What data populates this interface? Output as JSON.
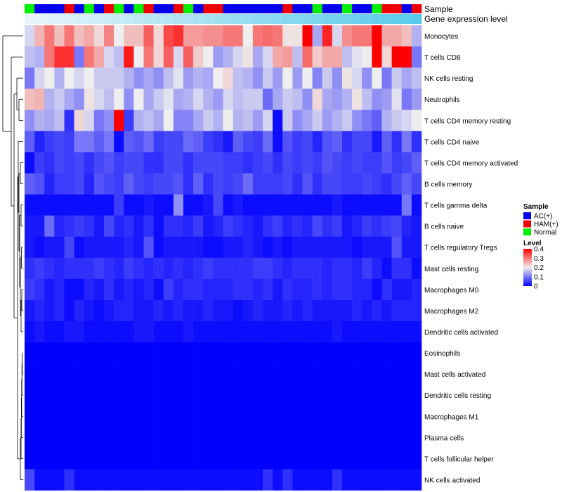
{
  "chart_data": {
    "type": "heatmap",
    "title": "",
    "annotation_tracks": {
      "sample_label": "Sample",
      "expression_label": "Gene expression level"
    },
    "columns": 40,
    "sample_groups": [
      "G",
      "B",
      "B",
      "B",
      "R",
      "B",
      "G",
      "B",
      "R",
      "G",
      "B",
      "G",
      "R",
      "B",
      "B",
      "R",
      "G",
      "B",
      "R",
      "R",
      "B",
      "B",
      "B",
      "B",
      "B",
      "B",
      "R",
      "B",
      "B",
      "G",
      "B",
      "B",
      "G",
      "B",
      "B",
      "G",
      "R",
      "R",
      "B",
      "R"
    ],
    "group_colors": {
      "B": "#0000ee",
      "R": "#ee0000",
      "G": "#00ee00"
    },
    "rows": [
      "Monocytes",
      "T cells CD8",
      "NK cells resting",
      "Neutrophils",
      "T cells CD4 memory resting",
      "T cells CD4 naive",
      "T cells CD4 memory activated",
      "B cells memory",
      "T cells gamma delta",
      "B cells naive",
      "T cells regulatory  Tregs",
      "Mast cells resting",
      "Macrophages M0",
      "Macrophages M2",
      "Dendritic cells activated",
      "Eosinophils",
      "Mast cells activated",
      "Dendritic cells resting",
      "Macrophages M1",
      "Plasma cells",
      "T cells follicular helper",
      "NK cells activated"
    ],
    "values": [
      [
        0.18,
        0.25,
        0.3,
        0.24,
        0.3,
        0.24,
        0.26,
        0.22,
        0.29,
        0.2,
        0.24,
        0.24,
        0.32,
        0.22,
        0.34,
        0.36,
        0.27,
        0.27,
        0.28,
        0.28,
        0.3,
        0.3,
        0.2,
        0.3,
        0.31,
        0.3,
        0.21,
        0.21,
        0.4,
        0.14,
        0.37,
        0.18,
        0.28,
        0.3,
        0.3,
        0.4,
        0.26,
        0.26,
        0.24,
        0.15
      ],
      [
        0.16,
        0.15,
        0.3,
        0.36,
        0.36,
        0.1,
        0.3,
        0.26,
        0.18,
        0.16,
        0.38,
        0.2,
        0.3,
        0.22,
        0.32,
        0.18,
        0.32,
        0.23,
        0.2,
        0.13,
        0.15,
        0.18,
        0.21,
        0.14,
        0.18,
        0.26,
        0.27,
        0.16,
        0.31,
        0.23,
        0.26,
        0.26,
        0.16,
        0.19,
        0.2,
        0.4,
        0.22,
        0.4,
        0.4,
        0.1
      ],
      [
        0.1,
        0.18,
        0.2,
        0.15,
        0.2,
        0.18,
        0.2,
        0.17,
        0.17,
        0.17,
        0.15,
        0.12,
        0.14,
        0.12,
        0.16,
        0.19,
        0.13,
        0.15,
        0.14,
        0.2,
        0.22,
        0.16,
        0.15,
        0.12,
        0.17,
        0.13,
        0.2,
        0.13,
        0.2,
        0.11,
        0.17,
        0.12,
        0.21,
        0.18,
        0.12,
        0.2,
        0.1,
        0.17,
        0.14,
        0.16
      ],
      [
        0.24,
        0.25,
        0.15,
        0.17,
        0.14,
        0.12,
        0.21,
        0.18,
        0.16,
        0.2,
        0.12,
        0.2,
        0.14,
        0.17,
        0.19,
        0.14,
        0.15,
        0.18,
        0.15,
        0.13,
        0.18,
        0.16,
        0.17,
        0.17,
        0.09,
        0.14,
        0.17,
        0.16,
        0.12,
        0.22,
        0.14,
        0.13,
        0.15,
        0.21,
        0.16,
        0.12,
        0.13,
        0.19,
        0.1,
        0.13
      ],
      [
        0.12,
        0.15,
        0.14,
        0.16,
        0.04,
        0.22,
        0.18,
        0.1,
        0.12,
        0.4,
        0.05,
        0.15,
        0.16,
        0.14,
        0.2,
        0.11,
        0.11,
        0.14,
        0.17,
        0.15,
        0.2,
        0.15,
        0.16,
        0.13,
        0.18,
        0.01,
        0.17,
        0.12,
        0.14,
        0.17,
        0.13,
        0.15,
        0.17,
        0.12,
        0.1,
        0.08,
        0.15,
        0.17,
        0.18,
        0.2
      ],
      [
        0.08,
        0.03,
        0.05,
        0.06,
        0.05,
        0.1,
        0.1,
        0.08,
        0.1,
        0.01,
        0.08,
        0.07,
        0.09,
        0.05,
        0.06,
        0.06,
        0.09,
        0.08,
        0.05,
        0.04,
        0.02,
        0.08,
        0.06,
        0.05,
        0.09,
        0.01,
        0.07,
        0.05,
        0.06,
        0.03,
        0.07,
        0.08,
        0.04,
        0.06,
        0.06,
        0.02,
        0.08,
        0.04,
        0.1,
        0.04
      ],
      [
        0.01,
        0.05,
        0.04,
        0.06,
        0.05,
        0.06,
        0.04,
        0.06,
        0.07,
        0.05,
        0.06,
        0.06,
        0.04,
        0.04,
        0.06,
        0.06,
        0.04,
        0.06,
        0.06,
        0.06,
        0.05,
        0.05,
        0.04,
        0.05,
        0.06,
        0.04,
        0.06,
        0.05,
        0.06,
        0.05,
        0.07,
        0.06,
        0.05,
        0.06,
        0.05,
        0.05,
        0.07,
        0.05,
        0.06,
        0.08
      ],
      [
        0.08,
        0.07,
        0.03,
        0.05,
        0.05,
        0.06,
        0.03,
        0.07,
        0.06,
        0.05,
        0.08,
        0.06,
        0.05,
        0.06,
        0.06,
        0.07,
        0.04,
        0.08,
        0.04,
        0.06,
        0.05,
        0.06,
        0.09,
        0.05,
        0.05,
        0.05,
        0.06,
        0.04,
        0.07,
        0.04,
        0.06,
        0.06,
        0.05,
        0.05,
        0.06,
        0.05,
        0.04,
        0.06,
        0.08,
        0.06
      ],
      [
        0.01,
        0.01,
        0.01,
        0.01,
        0.01,
        0.01,
        0.01,
        0.01,
        0.01,
        0.05,
        0.01,
        0.01,
        0.02,
        0.01,
        0.01,
        0.12,
        0.01,
        0.01,
        0.02,
        0.06,
        0.01,
        0.02,
        0.01,
        0.01,
        0.01,
        0.01,
        0.01,
        0.01,
        0.01,
        0.01,
        0.01,
        0.02,
        0.01,
        0.01,
        0.01,
        0.01,
        0.01,
        0.01,
        0.1,
        0.01
      ],
      [
        0.02,
        0.02,
        0.09,
        0.03,
        0.04,
        0.05,
        0.04,
        0.02,
        0.06,
        0.03,
        0.04,
        0.02,
        0.04,
        0.01,
        0.04,
        0.04,
        0.03,
        0.05,
        0.02,
        0.03,
        0.05,
        0.04,
        0.03,
        0.02,
        0.04,
        0.05,
        0.03,
        0.04,
        0.03,
        0.06,
        0.04,
        0.05,
        0.02,
        0.03,
        0.05,
        0.04,
        0.05,
        0.06,
        0.03,
        0.02
      ],
      [
        0.02,
        0.01,
        0.02,
        0.02,
        0.06,
        0.01,
        0.02,
        0.02,
        0.02,
        0.02,
        0.03,
        0.02,
        0.07,
        0.01,
        0.02,
        0.02,
        0.02,
        0.02,
        0.01,
        0.01,
        0.02,
        0.02,
        0.03,
        0.02,
        0.01,
        0.02,
        0.01,
        0.02,
        0.02,
        0.02,
        0.02,
        0.02,
        0.02,
        0.01,
        0.02,
        0.02,
        0.02,
        0.07,
        0.02,
        0.02
      ],
      [
        0.04,
        0.05,
        0.04,
        0.03,
        0.04,
        0.04,
        0.04,
        0.05,
        0.04,
        0.03,
        0.05,
        0.04,
        0.03,
        0.04,
        0.03,
        0.04,
        0.03,
        0.04,
        0.05,
        0.04,
        0.04,
        0.04,
        0.04,
        0.05,
        0.05,
        0.04,
        0.03,
        0.04,
        0.04,
        0.04,
        0.03,
        0.04,
        0.04,
        0.03,
        0.05,
        0.03,
        0.01,
        0.04,
        0.04,
        0.01
      ],
      [
        0.05,
        0.04,
        0.02,
        0.03,
        0.01,
        0.01,
        0.03,
        0.02,
        0.04,
        0.02,
        0.03,
        0.02,
        0.03,
        0.01,
        0.05,
        0.03,
        0.04,
        0.04,
        0.03,
        0.03,
        0.03,
        0.04,
        0.04,
        0.03,
        0.04,
        0.02,
        0.04,
        0.03,
        0.03,
        0.04,
        0.03,
        0.04,
        0.04,
        0.03,
        0.03,
        0.01,
        0.04,
        0.02,
        0.02,
        0.03
      ],
      [
        0.02,
        0.03,
        0.02,
        0.03,
        0.01,
        0.03,
        0.02,
        0.01,
        0.02,
        0.03,
        0.03,
        0.02,
        0.02,
        0.03,
        0.02,
        0.03,
        0.02,
        0.02,
        0.03,
        0.02,
        0.02,
        0.01,
        0.02,
        0.03,
        0.02,
        0.02,
        0.03,
        0.02,
        0.03,
        0.02,
        0.02,
        0.02,
        0.02,
        0.03,
        0.02,
        0.03,
        0.02,
        0.03,
        0.03,
        0.03
      ],
      [
        0.01,
        0.02,
        0.01,
        0.01,
        0.02,
        0.02,
        0.01,
        0.01,
        0.01,
        0.01,
        0.01,
        0.02,
        0.02,
        0.01,
        0.01,
        0.01,
        0.02,
        0.01,
        0.01,
        0.01,
        0.01,
        0.01,
        0.01,
        0.01,
        0.01,
        0.01,
        0.01,
        0.01,
        0.01,
        0.01,
        0.01,
        0.02,
        0.01,
        0.01,
        0.01,
        0.01,
        0.01,
        0.01,
        0.01,
        0.01
      ],
      [
        0,
        0,
        0,
        0,
        0,
        0,
        0,
        0,
        0,
        0,
        0,
        0,
        0,
        0,
        0,
        0,
        0,
        0,
        0,
        0,
        0,
        0,
        0,
        0,
        0,
        0,
        0,
        0,
        0,
        0,
        0,
        0,
        0,
        0,
        0,
        0,
        0,
        0,
        0,
        0
      ],
      [
        0,
        0,
        0,
        0,
        0,
        0,
        0,
        0,
        0,
        0,
        0,
        0,
        0,
        0,
        0,
        0,
        0,
        0,
        0,
        0,
        0,
        0,
        0,
        0,
        0,
        0,
        0,
        0,
        0,
        0,
        0,
        0,
        0,
        0,
        0,
        0,
        0,
        0,
        0,
        0
      ],
      [
        0,
        0,
        0,
        0,
        0,
        0,
        0,
        0,
        0,
        0,
        0,
        0,
        0,
        0,
        0,
        0,
        0,
        0,
        0,
        0,
        0,
        0,
        0,
        0,
        0,
        0,
        0,
        0,
        0,
        0,
        0,
        0,
        0,
        0,
        0,
        0,
        0,
        0,
        0,
        0
      ],
      [
        0,
        0,
        0,
        0,
        0,
        0,
        0,
        0,
        0,
        0,
        0,
        0,
        0,
        0,
        0,
        0,
        0,
        0,
        0,
        0,
        0,
        0,
        0,
        0,
        0,
        0,
        0,
        0,
        0,
        0,
        0,
        0,
        0,
        0,
        0,
        0,
        0,
        0,
        0,
        0
      ],
      [
        0,
        0,
        0,
        0,
        0,
        0,
        0,
        0,
        0,
        0,
        0,
        0,
        0,
        0,
        0,
        0,
        0,
        0,
        0,
        0,
        0,
        0,
        0,
        0,
        0,
        0,
        0,
        0,
        0,
        0,
        0,
        0,
        0,
        0,
        0,
        0,
        0,
        0,
        0,
        0
      ],
      [
        0,
        0,
        0,
        0,
        0,
        0,
        0,
        0,
        0,
        0,
        0,
        0,
        0,
        0,
        0,
        0,
        0,
        0,
        0,
        0,
        0,
        0,
        0,
        0,
        0,
        0,
        0,
        0,
        0,
        0,
        0,
        0,
        0,
        0,
        0,
        0,
        0,
        0,
        0,
        0
      ],
      [
        0.06,
        0.01,
        0.01,
        0.01,
        0.04,
        0.01,
        0.01,
        0.01,
        0.01,
        0.01,
        0.01,
        0.01,
        0.01,
        0.01,
        0.01,
        0.01,
        0.01,
        0.01,
        0.01,
        0.01,
        0.01,
        0.01,
        0.01,
        0.01,
        0.04,
        0.01,
        0.04,
        0.01,
        0.01,
        0.01,
        0.01,
        0.04,
        0.01,
        0.01,
        0.01,
        0.01,
        0.01,
        0.01,
        0.01,
        0.01
      ]
    ],
    "color_scale": {
      "min": 0,
      "mid": 0.2,
      "max": 0.4,
      "low": "#0000ff",
      "midColor": "#eeeeee",
      "high": "#ff0000"
    },
    "legend": {
      "position": "right",
      "sample_title": "Sample",
      "sample_entries": [
        {
          "label": "AC(+)",
          "color": "#0000ee"
        },
        {
          "label": "HAM(+)",
          "color": "#ee0000"
        },
        {
          "label": "Normal",
          "color": "#00ee00"
        }
      ],
      "level_title": "Level",
      "level_ticks": [
        "0.4",
        "0.3",
        "0.2",
        "0.1",
        "0"
      ]
    }
  }
}
